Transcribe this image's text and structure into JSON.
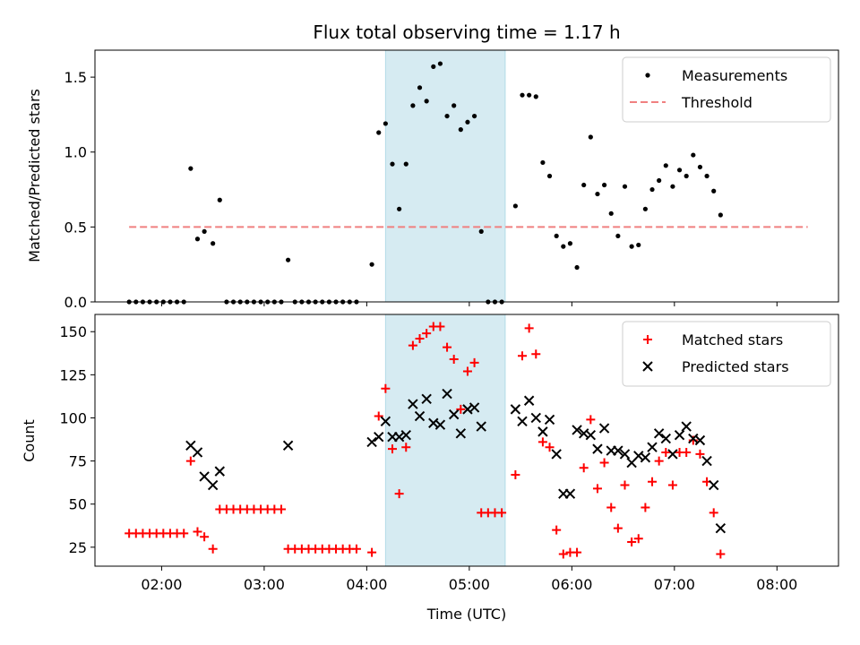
{
  "chart_data": [
    {
      "type": "scatter",
      "title": "Flux total observing time = 1.17 h",
      "xlabel": "",
      "ylabel": "Matched/Predicted stars",
      "xlim": [
        "01:21",
        "08:36"
      ],
      "ylim": [
        0,
        1.68
      ],
      "yticks": [
        0.0,
        0.5,
        1.0,
        1.5
      ],
      "ytick_labels": [
        "0.0",
        "0.5",
        "1.0",
        "1.5"
      ],
      "xticks": [
        "02:00",
        "03:00",
        "04:00",
        "05:00",
        "06:00",
        "07:00",
        "08:00"
      ],
      "legend_position": "top-right",
      "shaded_interval": {
        "start": "04:11",
        "end": "05:21",
        "color": "#add8e6"
      },
      "threshold": {
        "name": "Threshold",
        "value": 0.5,
        "start": "01:41",
        "end": "08:18",
        "color": "#f08080"
      },
      "series": [
        {
          "name": "Measurements",
          "color": "#000000",
          "marker": "dot",
          "points": [
            [
              "01:41",
              0
            ],
            [
              "01:45",
              0
            ],
            [
              "01:49",
              0
            ],
            [
              "01:53",
              0
            ],
            [
              "01:57",
              0
            ],
            [
              "02:01",
              0
            ],
            [
              "02:05",
              0
            ],
            [
              "02:09",
              0
            ],
            [
              "02:13",
              0
            ],
            [
              "02:17",
              0.89
            ],
            [
              "02:21",
              0.42
            ],
            [
              "02:25",
              0.47
            ],
            [
              "02:30",
              0.39
            ],
            [
              "02:34",
              0.68
            ],
            [
              "02:38",
              0
            ],
            [
              "02:42",
              0
            ],
            [
              "02:46",
              0
            ],
            [
              "02:50",
              0
            ],
            [
              "02:54",
              0
            ],
            [
              "02:58",
              0
            ],
            [
              "03:02",
              0
            ],
            [
              "03:06",
              0
            ],
            [
              "03:10",
              0
            ],
            [
              "03:14",
              0.28
            ],
            [
              "03:18",
              0
            ],
            [
              "03:22",
              0
            ],
            [
              "03:26",
              0
            ],
            [
              "03:30",
              0
            ],
            [
              "03:34",
              0
            ],
            [
              "03:38",
              0
            ],
            [
              "03:42",
              0
            ],
            [
              "03:46",
              0
            ],
            [
              "03:50",
              0
            ],
            [
              "03:54",
              0
            ],
            [
              "04:03",
              0.25
            ],
            [
              "04:07",
              1.13
            ],
            [
              "04:11",
              1.19
            ],
            [
              "04:15",
              0.92
            ],
            [
              "04:19",
              0.62
            ],
            [
              "04:23",
              0.92
            ],
            [
              "04:27",
              1.31
            ],
            [
              "04:31",
              1.43
            ],
            [
              "04:35",
              1.34
            ],
            [
              "04:39",
              1.57
            ],
            [
              "04:43",
              1.59
            ],
            [
              "04:47",
              1.24
            ],
            [
              "04:51",
              1.31
            ],
            [
              "04:55",
              1.15
            ],
            [
              "04:59",
              1.2
            ],
            [
              "05:03",
              1.24
            ],
            [
              "05:07",
              0.47
            ],
            [
              "05:11",
              0
            ],
            [
              "05:15",
              0
            ],
            [
              "05:19",
              0
            ],
            [
              "05:27",
              0.64
            ],
            [
              "05:31",
              1.38
            ],
            [
              "05:35",
              1.38
            ],
            [
              "05:39",
              1.37
            ],
            [
              "05:43",
              0.93
            ],
            [
              "05:47",
              0.84
            ],
            [
              "05:51",
              0.44
            ],
            [
              "05:55",
              0.37
            ],
            [
              "05:59",
              0.39
            ],
            [
              "06:03",
              0.23
            ],
            [
              "06:07",
              0.78
            ],
            [
              "06:11",
              1.1
            ],
            [
              "06:15",
              0.72
            ],
            [
              "06:19",
              0.78
            ],
            [
              "06:23",
              0.59
            ],
            [
              "06:27",
              0.44
            ],
            [
              "06:31",
              0.77
            ],
            [
              "06:35",
              0.37
            ],
            [
              "06:39",
              0.38
            ],
            [
              "06:43",
              0.62
            ],
            [
              "06:47",
              0.75
            ],
            [
              "06:51",
              0.81
            ],
            [
              "06:55",
              0.91
            ],
            [
              "06:59",
              0.77
            ],
            [
              "07:03",
              0.88
            ],
            [
              "07:07",
              0.84
            ],
            [
              "07:11",
              0.98
            ],
            [
              "07:15",
              0.9
            ],
            [
              "07:19",
              0.84
            ],
            [
              "07:23",
              0.74
            ],
            [
              "07:27",
              0.58
            ]
          ]
        }
      ]
    },
    {
      "type": "scatter",
      "title": "",
      "xlabel": "Time (UTC)",
      "ylabel": "Count",
      "xlim": [
        "01:21",
        "08:36"
      ],
      "ylim": [
        14,
        160
      ],
      "yticks": [
        25,
        50,
        75,
        100,
        125,
        150
      ],
      "ytick_labels": [
        "25",
        "50",
        "75",
        "100",
        "125",
        "150"
      ],
      "xticks": [
        "02:00",
        "03:00",
        "04:00",
        "05:00",
        "06:00",
        "07:00",
        "08:00"
      ],
      "legend_position": "top-right",
      "shaded_interval": {
        "start": "04:11",
        "end": "05:21",
        "color": "#add8e6"
      },
      "series": [
        {
          "name": "Matched stars",
          "color": "#ff0000",
          "marker": "plus",
          "points": [
            [
              "01:41",
              33
            ],
            [
              "01:45",
              33
            ],
            [
              "01:49",
              33
            ],
            [
              "01:53",
              33
            ],
            [
              "01:57",
              33
            ],
            [
              "02:01",
              33
            ],
            [
              "02:05",
              33
            ],
            [
              "02:09",
              33
            ],
            [
              "02:13",
              33
            ],
            [
              "02:17",
              75
            ],
            [
              "02:21",
              34
            ],
            [
              "02:25",
              31
            ],
            [
              "02:30",
              24
            ],
            [
              "02:34",
              47
            ],
            [
              "02:38",
              47
            ],
            [
              "02:42",
              47
            ],
            [
              "02:46",
              47
            ],
            [
              "02:50",
              47
            ],
            [
              "02:54",
              47
            ],
            [
              "02:58",
              47
            ],
            [
              "03:02",
              47
            ],
            [
              "03:06",
              47
            ],
            [
              "03:10",
              47
            ],
            [
              "03:14",
              24
            ],
            [
              "03:18",
              24
            ],
            [
              "03:22",
              24
            ],
            [
              "03:26",
              24
            ],
            [
              "03:30",
              24
            ],
            [
              "03:34",
              24
            ],
            [
              "03:38",
              24
            ],
            [
              "03:42",
              24
            ],
            [
              "03:46",
              24
            ],
            [
              "03:50",
              24
            ],
            [
              "03:54",
              24
            ],
            [
              "04:03",
              22
            ],
            [
              "04:07",
              101
            ],
            [
              "04:11",
              117
            ],
            [
              "04:15",
              82
            ],
            [
              "04:19",
              56
            ],
            [
              "04:23",
              83
            ],
            [
              "04:27",
              142
            ],
            [
              "04:31",
              146
            ],
            [
              "04:35",
              149
            ],
            [
              "04:39",
              153
            ],
            [
              "04:43",
              153
            ],
            [
              "04:47",
              141
            ],
            [
              "04:51",
              134
            ],
            [
              "04:55",
              105
            ],
            [
              "04:59",
              127
            ],
            [
              "05:03",
              132
            ],
            [
              "05:07",
              45
            ],
            [
              "05:11",
              45
            ],
            [
              "05:15",
              45
            ],
            [
              "05:19",
              45
            ],
            [
              "05:27",
              67
            ],
            [
              "05:31",
              136
            ],
            [
              "05:35",
              152
            ],
            [
              "05:39",
              137
            ],
            [
              "05:43",
              86
            ],
            [
              "05:47",
              83
            ],
            [
              "05:51",
              35
            ],
            [
              "05:55",
              21
            ],
            [
              "05:59",
              22
            ],
            [
              "06:03",
              22
            ],
            [
              "06:07",
              71
            ],
            [
              "06:11",
              99
            ],
            [
              "06:15",
              59
            ],
            [
              "06:19",
              74
            ],
            [
              "06:23",
              48
            ],
            [
              "06:27",
              36
            ],
            [
              "06:31",
              61
            ],
            [
              "06:35",
              28
            ],
            [
              "06:39",
              30
            ],
            [
              "06:43",
              48
            ],
            [
              "06:47",
              63
            ],
            [
              "06:51",
              75
            ],
            [
              "06:55",
              80
            ],
            [
              "06:59",
              61
            ],
            [
              "07:03",
              80
            ],
            [
              "07:07",
              80
            ],
            [
              "07:11",
              87
            ],
            [
              "07:15",
              79
            ],
            [
              "07:19",
              63
            ],
            [
              "07:23",
              45
            ],
            [
              "07:27",
              21
            ]
          ]
        },
        {
          "name": "Predicted stars",
          "color": "#000000",
          "marker": "cross",
          "points": [
            [
              "02:17",
              84
            ],
            [
              "02:21",
              80
            ],
            [
              "02:25",
              66
            ],
            [
              "02:30",
              61
            ],
            [
              "02:34",
              69
            ],
            [
              "03:14",
              84
            ],
            [
              "04:03",
              86
            ],
            [
              "04:07",
              89
            ],
            [
              "04:11",
              98
            ],
            [
              "04:15",
              89
            ],
            [
              "04:19",
              89
            ],
            [
              "04:23",
              90
            ],
            [
              "04:27",
              108
            ],
            [
              "04:31",
              101
            ],
            [
              "04:35",
              111
            ],
            [
              "04:39",
              97
            ],
            [
              "04:43",
              96
            ],
            [
              "04:47",
              114
            ],
            [
              "04:51",
              102
            ],
            [
              "04:55",
              91
            ],
            [
              "04:59",
              105
            ],
            [
              "05:03",
              106
            ],
            [
              "05:07",
              95
            ],
            [
              "05:27",
              105
            ],
            [
              "05:31",
              98
            ],
            [
              "05:35",
              110
            ],
            [
              "05:39",
              100
            ],
            [
              "05:43",
              92
            ],
            [
              "05:47",
              99
            ],
            [
              "05:51",
              79
            ],
            [
              "05:55",
              56
            ],
            [
              "05:59",
              56
            ],
            [
              "06:03",
              93
            ],
            [
              "06:07",
              91
            ],
            [
              "06:11",
              90
            ],
            [
              "06:15",
              82
            ],
            [
              "06:19",
              94
            ],
            [
              "06:23",
              81
            ],
            [
              "06:27",
              81
            ],
            [
              "06:31",
              79
            ],
            [
              "06:35",
              74
            ],
            [
              "06:39",
              78
            ],
            [
              "06:43",
              77
            ],
            [
              "06:47",
              83
            ],
            [
              "06:51",
              91
            ],
            [
              "06:55",
              88
            ],
            [
              "06:59",
              79
            ],
            [
              "07:03",
              90
            ],
            [
              "07:07",
              95
            ],
            [
              "07:11",
              88
            ],
            [
              "07:15",
              87
            ],
            [
              "07:19",
              75
            ],
            [
              "07:23",
              61
            ],
            [
              "07:27",
              36
            ]
          ]
        }
      ]
    }
  ]
}
